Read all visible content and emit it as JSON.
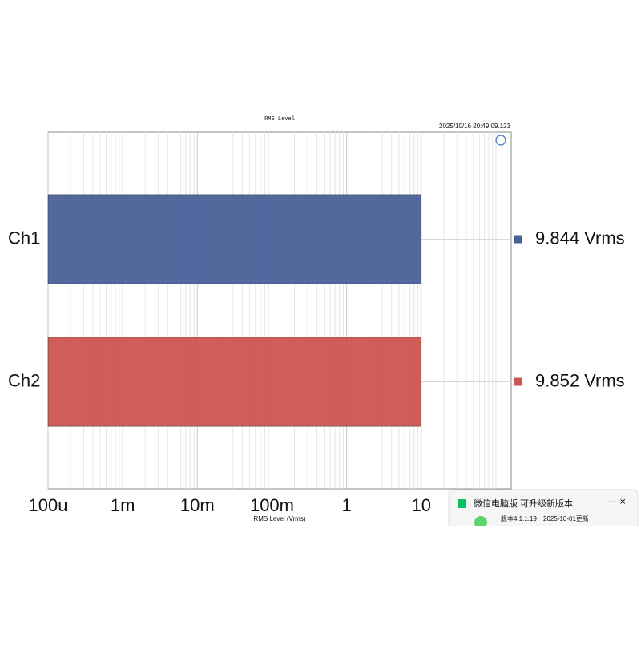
{
  "chart_data": {
    "type": "hbar",
    "title": "RMS Level",
    "timestamp": "2025/10/16 20:49:09.123",
    "x_label": "RMS Level (Vrms)",
    "categories": [
      "Ch1",
      "Ch2"
    ],
    "values": [
      9.844,
      9.852
    ],
    "value_labels": [
      "9.844 Vrms",
      "9.852 Vrms"
    ],
    "colors": [
      "#4a6199",
      "#cc5450"
    ],
    "xscale": "log",
    "xlim": [
      0.0001,
      160
    ],
    "xticks": [
      {
        "value": 0.0001,
        "label": "100u"
      },
      {
        "value": 0.001,
        "label": "1m"
      },
      {
        "value": 0.01,
        "label": "10m"
      },
      {
        "value": 0.1,
        "label": "100m"
      },
      1,
      10
    ],
    "xminorticks": [
      0.0002,
      0.0003,
      0.0004,
      0.0005,
      0.0006,
      0.0007,
      0.0008,
      0.0009,
      0.002,
      0.003,
      0.004,
      0.005,
      0.006,
      0.007,
      0.008,
      0.009,
      0.02,
      0.03,
      0.04,
      0.05,
      0.06,
      0.07,
      0.08,
      0.09,
      0.2,
      0.3,
      0.4,
      0.5,
      0.6,
      0.7,
      0.8,
      0.9,
      2,
      3,
      4,
      5,
      6,
      7,
      8,
      9,
      20,
      30,
      40,
      50,
      60,
      70,
      80,
      90,
      100
    ],
    "grid": true
  },
  "notification": {
    "title": "微信电脑版 可升级新版本",
    "version": "版本4.1.1.19",
    "date": "2025-10-01更新"
  }
}
